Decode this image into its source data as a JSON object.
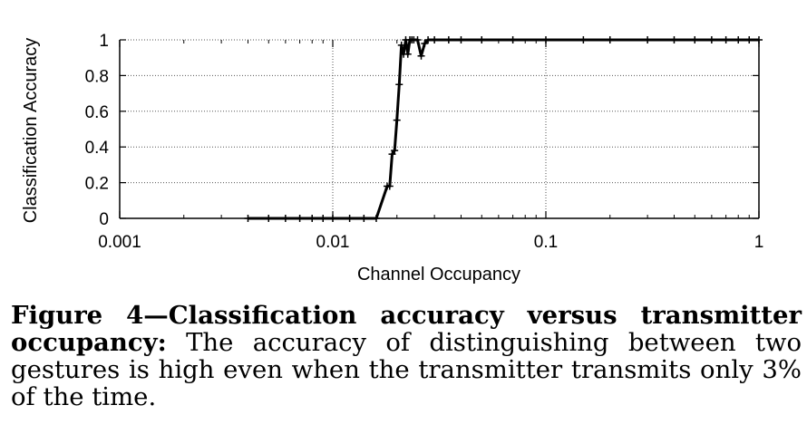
{
  "chart_data": {
    "type": "line",
    "xlabel": "Channel Occupancy",
    "ylabel": "Classification Accuracy",
    "x_scale": "log",
    "xlim": [
      0.001,
      1
    ],
    "ylim": [
      0,
      1
    ],
    "x_ticks": [
      0.001,
      0.01,
      0.1,
      1
    ],
    "x_tick_labels": [
      "0.001",
      "0.01",
      "0.1",
      "1"
    ],
    "y_ticks": [
      0,
      0.2,
      0.4,
      0.6,
      0.8,
      1
    ],
    "y_tick_labels": [
      "0",
      "0.2",
      "0.4",
      "0.6",
      "0.8",
      "1"
    ],
    "grid": true,
    "series": [
      {
        "color": "#000000",
        "marker": "plus",
        "x": [
          0.004,
          0.005,
          0.006,
          0.007,
          0.008,
          0.009,
          0.01,
          0.012,
          0.014,
          0.016,
          0.018,
          0.0185,
          0.019,
          0.0195,
          0.02,
          0.0205,
          0.021,
          0.0215,
          0.022,
          0.0225,
          0.023,
          0.0235,
          0.024,
          0.025,
          0.026,
          0.027,
          0.028,
          0.03,
          0.035,
          0.04,
          0.05,
          0.07,
          0.1,
          0.15,
          0.2,
          0.3,
          0.4,
          0.5,
          0.6,
          0.7,
          0.8,
          0.9,
          1.0
        ],
        "y": [
          0,
          0,
          0,
          0,
          0,
          0,
          0,
          0,
          0,
          0,
          0.18,
          0.18,
          0.36,
          0.38,
          0.55,
          0.75,
          0.97,
          0.92,
          1,
          0.92,
          1,
          1,
          1,
          1,
          0.91,
          0.98,
          1,
          1,
          1,
          1,
          1,
          1,
          1,
          1,
          1,
          1,
          1,
          1,
          1,
          1,
          1,
          1,
          1
        ]
      }
    ]
  },
  "caption": {
    "label": "Figure 4—Classification accuracy versus transmitter occupancy:",
    "text": "The accuracy of distinguishing between two gestures is high even when the transmitter transmits only 3% of the time."
  }
}
